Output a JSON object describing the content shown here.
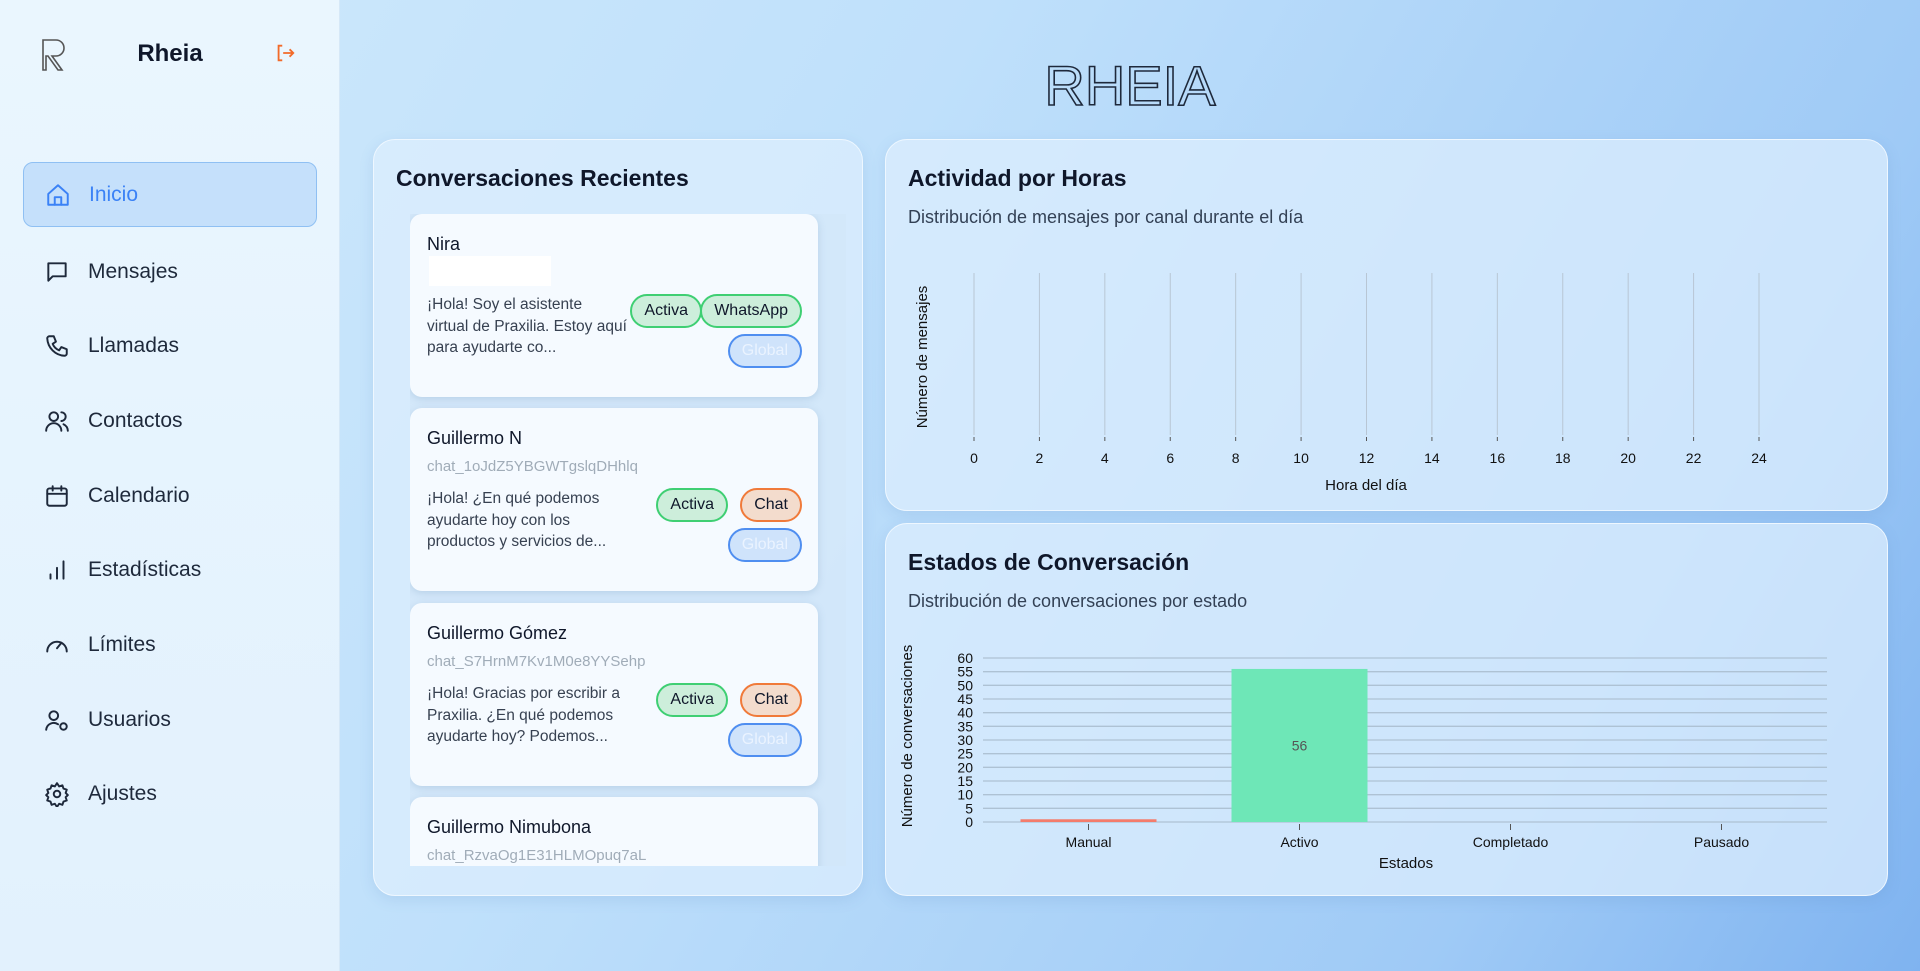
{
  "sidebar": {
    "brand": "Rheia",
    "items": [
      {
        "label": "Inicio",
        "icon": "home-icon",
        "active": true
      },
      {
        "label": "Mensajes",
        "icon": "message-icon"
      },
      {
        "label": "Llamadas",
        "icon": "phone-icon"
      },
      {
        "label": "Contactos",
        "icon": "users-icon"
      },
      {
        "label": "Calendario",
        "icon": "calendar-icon"
      },
      {
        "label": "Estadísticas",
        "icon": "bar-chart-icon"
      },
      {
        "label": "Límites",
        "icon": "gauge-icon"
      },
      {
        "label": "Usuarios",
        "icon": "user-cog-icon"
      },
      {
        "label": "Ajustes",
        "icon": "gear-icon"
      }
    ]
  },
  "header": {
    "title": "RHEIA"
  },
  "conversations": {
    "title": "Conversaciones Recientes",
    "items": [
      {
        "name": "Nira",
        "id": "",
        "message": "¡Hola! Soy el asistente virtual de Praxilia. Estoy aquí para ayudarte co...",
        "status": "Activa",
        "channel": "WhatsApp",
        "scope": "Global"
      },
      {
        "name": "Guillermo N",
        "id": "chat_1oJdZ5YBGWTgslqDHhlq",
        "message": "¡Hola! ¿En qué podemos ayudarte hoy con los productos y servicios de...",
        "status": "Activa",
        "channel": "Chat",
        "scope": "Global"
      },
      {
        "name": "Guillermo Gómez",
        "id": "chat_S7HrnM7Kv1M0e8YYSehp",
        "message": "¡Hola! Gracias por escribir a Praxilia. ¿En qué podemos ayudarte hoy? Podemos...",
        "status": "Activa",
        "channel": "Chat",
        "scope": "Global"
      },
      {
        "name": "Guillermo Nimubona",
        "id": "chat_RzvaOg1E31HLMOpuq7aL",
        "message": "",
        "status": "",
        "channel": "",
        "scope": ""
      }
    ]
  },
  "activity": {
    "title": "Actividad por Horas",
    "subtitle": "Distribución de mensajes por canal durante el día"
  },
  "states": {
    "title": "Estados de Conversación",
    "subtitle": "Distribución de conversaciones por estado"
  },
  "chart_data": [
    {
      "type": "line",
      "xlabel": "Hora del día",
      "ylabel": "Número de mensajes",
      "xlim": [
        0,
        24
      ],
      "xticks": [
        0,
        2,
        4,
        6,
        8,
        10,
        12,
        14,
        16,
        18,
        20,
        22,
        24
      ],
      "series": [],
      "grid": "vertical"
    },
    {
      "type": "bar",
      "xlabel": "Estados",
      "ylabel": "Número de conversaciones",
      "categories": [
        "Manual",
        "Activo",
        "Completado",
        "Pausado"
      ],
      "values": [
        1,
        56,
        0,
        0
      ],
      "data_labels": [
        "",
        "56",
        "",
        ""
      ],
      "colors": [
        "#f47c6c",
        "#6ee7b7",
        "#94a3b8",
        "#94a3b8"
      ],
      "ylim": [
        0,
        60
      ],
      "yticks": [
        0,
        5,
        10,
        15,
        20,
        25,
        30,
        35,
        40,
        45,
        50,
        55,
        60
      ],
      "grid": "horizontal"
    }
  ]
}
